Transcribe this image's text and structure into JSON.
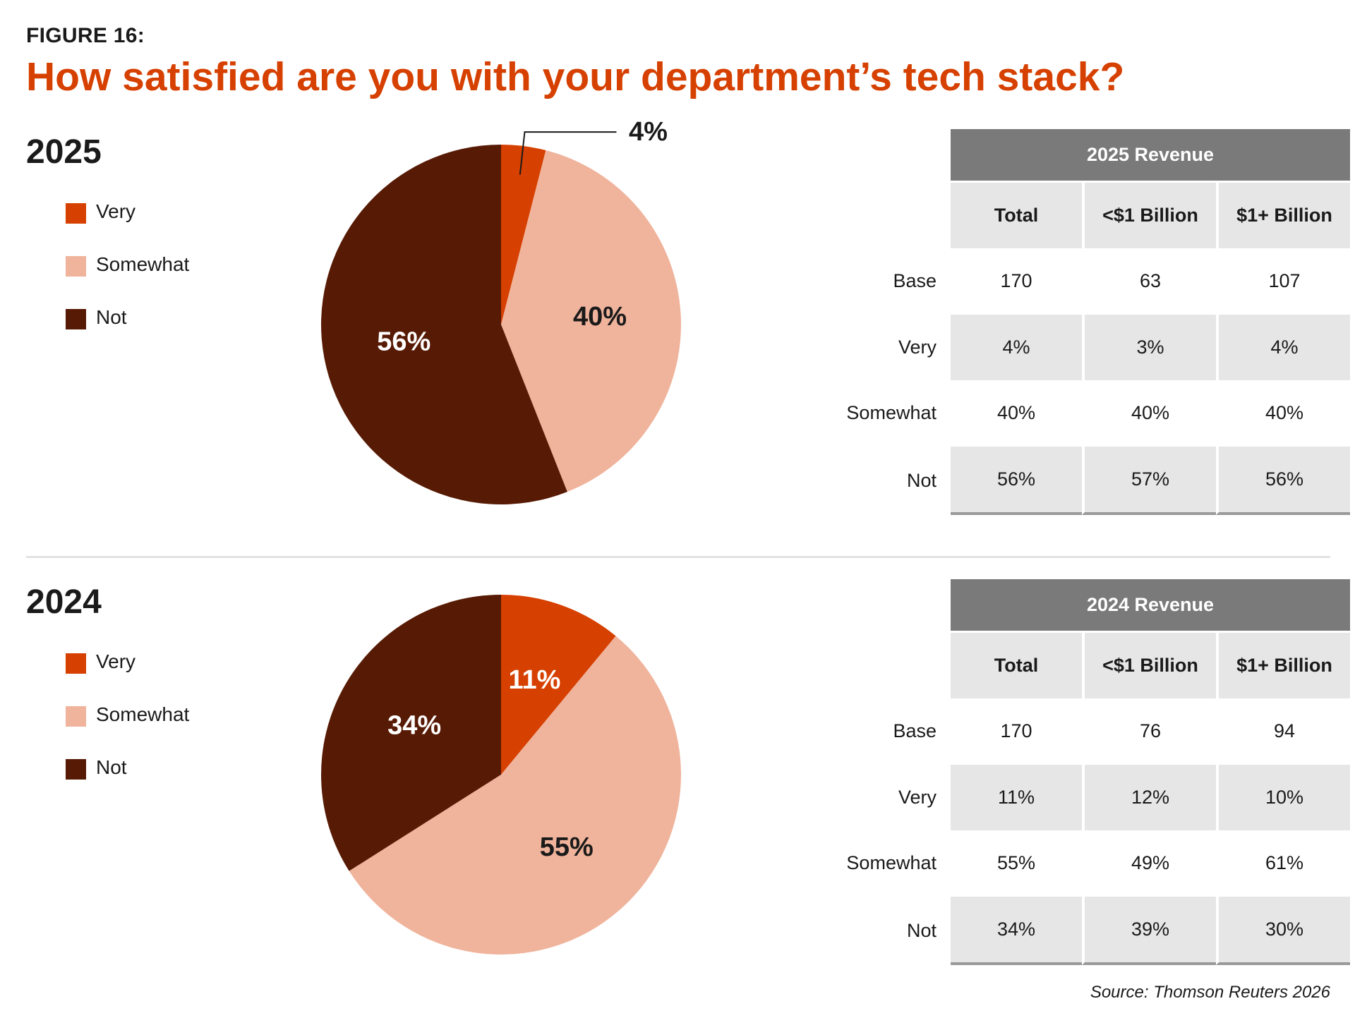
{
  "figure_label": "FIGURE 16:",
  "title": "How satisfied are you with your department’s tech stack?",
  "colors": {
    "very": "#d64000",
    "somewhat": "#f0b39b",
    "not": "#571a04",
    "accent": "#d64000",
    "table_header": "#7a7a7a",
    "table_shade": "#e6e6e6"
  },
  "legend": [
    "Very",
    "Somewhat",
    "Not"
  ],
  "chart_data": [
    {
      "type": "pie",
      "title": "2025",
      "categories": [
        "Very",
        "Somewhat",
        "Not"
      ],
      "values": [
        4,
        40,
        56
      ],
      "labels": [
        "4%",
        "40%",
        "56%"
      ]
    },
    {
      "type": "pie",
      "title": "2024",
      "categories": [
        "Very",
        "Somewhat",
        "Not"
      ],
      "values": [
        11,
        55,
        34
      ],
      "labels": [
        "11%",
        "55%",
        "34%"
      ]
    },
    {
      "type": "table",
      "title": "2025 Revenue",
      "columns": [
        "Total",
        "<$1 Billion",
        "$1+ Billion"
      ],
      "rows": [
        {
          "label": "Base",
          "values": [
            "170",
            "63",
            "107"
          ]
        },
        {
          "label": "Very",
          "values": [
            "4%",
            "3%",
            "4%"
          ]
        },
        {
          "label": "Somewhat",
          "values": [
            "40%",
            "40%",
            "40%"
          ]
        },
        {
          "label": "Not",
          "values": [
            "56%",
            "57%",
            "56%"
          ]
        }
      ]
    },
    {
      "type": "table",
      "title": "2024 Revenue",
      "columns": [
        "Total",
        "<$1 Billion",
        "$1+ Billion"
      ],
      "rows": [
        {
          "label": "Base",
          "values": [
            "170",
            "76",
            "94"
          ]
        },
        {
          "label": "Very",
          "values": [
            "11%",
            "12%",
            "10%"
          ]
        },
        {
          "label": "Somewhat",
          "values": [
            "55%",
            "49%",
            "61%"
          ]
        },
        {
          "label": "Not",
          "values": [
            "34%",
            "39%",
            "30%"
          ]
        }
      ]
    }
  ],
  "source": "Source: Thomson Reuters 2026"
}
